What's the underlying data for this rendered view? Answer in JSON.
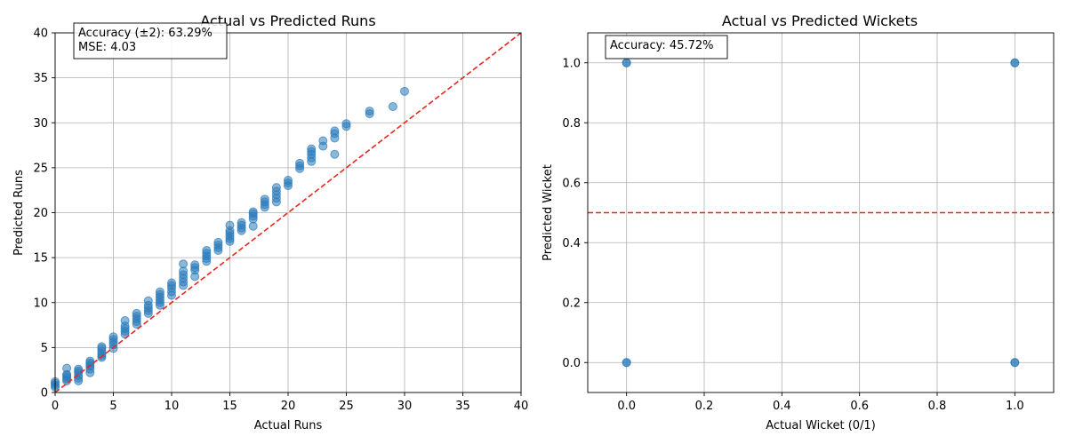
{
  "chart_data": [
    {
      "type": "scatter",
      "title": "Actual vs Predicted Runs",
      "xlabel": "Actual Runs",
      "ylabel": "Predicted Runs",
      "xlim": [
        0,
        40
      ],
      "ylim": [
        0,
        40
      ],
      "xticks": [
        0,
        5,
        10,
        15,
        20,
        25,
        30,
        35,
        40
      ],
      "yticks": [
        0,
        5,
        10,
        15,
        20,
        25,
        30,
        35,
        40
      ],
      "grid": true,
      "reference_line": {
        "points": [
          [
            0,
            0
          ],
          [
            40,
            40
          ]
        ],
        "color": "#e8261d",
        "style": "dashed"
      },
      "annotation": [
        "Accuracy (±2): 63.29%",
        "MSE: 4.03"
      ],
      "point_color": "#2b7bba",
      "series": [
        {
          "points": [
            [
              0,
              0.6
            ],
            [
              0,
              0.8
            ],
            [
              0,
              1.0
            ],
            [
              0,
              1.2
            ],
            [
              1,
              1.3
            ],
            [
              1,
              1.5
            ],
            [
              1,
              1.7
            ],
            [
              1,
              1.9
            ],
            [
              1,
              2.0
            ],
            [
              1,
              2.7
            ],
            [
              2,
              1.3
            ],
            [
              2,
              1.6
            ],
            [
              2,
              1.9
            ],
            [
              2,
              2.2
            ],
            [
              2,
              2.4
            ],
            [
              2,
              2.6
            ],
            [
              3,
              2.2
            ],
            [
              3,
              2.6
            ],
            [
              3,
              2.9
            ],
            [
              3,
              3.1
            ],
            [
              3,
              3.3
            ],
            [
              3,
              3.5
            ],
            [
              4,
              3.9
            ],
            [
              4,
              4.1
            ],
            [
              4,
              4.3
            ],
            [
              4,
              4.6
            ],
            [
              4,
              4.9
            ],
            [
              4,
              5.1
            ],
            [
              5,
              4.9
            ],
            [
              5,
              5.3
            ],
            [
              5,
              5.6
            ],
            [
              5,
              5.9
            ],
            [
              5,
              6.2
            ],
            [
              6,
              6.5
            ],
            [
              6,
              6.8
            ],
            [
              6,
              7.1
            ],
            [
              6,
              7.4
            ],
            [
              6,
              8.0
            ],
            [
              7,
              7.6
            ],
            [
              7,
              7.9
            ],
            [
              7,
              8.2
            ],
            [
              7,
              8.5
            ],
            [
              7,
              8.8
            ],
            [
              8,
              8.8
            ],
            [
              8,
              9.1
            ],
            [
              8,
              9.4
            ],
            [
              8,
              9.7
            ],
            [
              8,
              10.2
            ],
            [
              9,
              9.7
            ],
            [
              9,
              10.0
            ],
            [
              9,
              10.3
            ],
            [
              9,
              10.6
            ],
            [
              9,
              10.9
            ],
            [
              9,
              11.2
            ],
            [
              10,
              10.8
            ],
            [
              10,
              11.2
            ],
            [
              10,
              11.6
            ],
            [
              10,
              11.9
            ],
            [
              10,
              12.2
            ],
            [
              11,
              11.9
            ],
            [
              11,
              12.3
            ],
            [
              11,
              12.7
            ],
            [
              11,
              13.1
            ],
            [
              11,
              13.5
            ],
            [
              11,
              14.3
            ],
            [
              12,
              12.9
            ],
            [
              12,
              13.6
            ],
            [
              12,
              13.9
            ],
            [
              12,
              14.2
            ],
            [
              13,
              14.6
            ],
            [
              13,
              14.9
            ],
            [
              13,
              15.2
            ],
            [
              13,
              15.5
            ],
            [
              13,
              15.8
            ],
            [
              14,
              15.8
            ],
            [
              14,
              16.1
            ],
            [
              14,
              16.4
            ],
            [
              14,
              16.7
            ],
            [
              15,
              16.8
            ],
            [
              15,
              17.1
            ],
            [
              15,
              17.4
            ],
            [
              15,
              17.7
            ],
            [
              15,
              18.0
            ],
            [
              15,
              18.6
            ],
            [
              16,
              18.0
            ],
            [
              16,
              18.3
            ],
            [
              16,
              18.6
            ],
            [
              16,
              18.9
            ],
            [
              17,
              18.5
            ],
            [
              17,
              19.3
            ],
            [
              17,
              19.6
            ],
            [
              17,
              19.9
            ],
            [
              17,
              20.1
            ],
            [
              18,
              20.6
            ],
            [
              18,
              20.9
            ],
            [
              18,
              21.2
            ],
            [
              18,
              21.5
            ],
            [
              19,
              21.2
            ],
            [
              19,
              21.6
            ],
            [
              19,
              22.0
            ],
            [
              19,
              22.4
            ],
            [
              19,
              22.8
            ],
            [
              20,
              23.0
            ],
            [
              20,
              23.3
            ],
            [
              20,
              23.6
            ],
            [
              21,
              24.9
            ],
            [
              21,
              25.2
            ],
            [
              21,
              25.5
            ],
            [
              22,
              25.7
            ],
            [
              22,
              26.1
            ],
            [
              22,
              26.5
            ],
            [
              22,
              26.8
            ],
            [
              22,
              27.1
            ],
            [
              23,
              27.4
            ],
            [
              23,
              28.0
            ],
            [
              24,
              26.5
            ],
            [
              24,
              28.3
            ],
            [
              24,
              28.8
            ],
            [
              24,
              29.1
            ],
            [
              25,
              29.6
            ],
            [
              25,
              29.9
            ],
            [
              27,
              31.0
            ],
            [
              27,
              31.3
            ],
            [
              29,
              31.8
            ],
            [
              30,
              33.5
            ]
          ]
        }
      ]
    },
    {
      "type": "scatter",
      "title": "Actual vs Predicted Wickets",
      "xlabel": "Actual Wicket (0/1)",
      "ylabel": "Predicted Wicket",
      "xlim": [
        -0.1,
        1.1
      ],
      "ylim": [
        -0.1,
        1.1
      ],
      "xticks": [
        0.0,
        0.2,
        0.4,
        0.6,
        0.8,
        1.0
      ],
      "yticks": [
        0.0,
        0.2,
        0.4,
        0.6,
        0.8,
        1.0
      ],
      "grid": true,
      "reference_line": {
        "y": 0.5,
        "color": "#e8261d",
        "style": "dashed"
      },
      "annotation": [
        "Accuracy: 45.72%"
      ],
      "point_color": "#2b7bba",
      "series": [
        {
          "points": [
            [
              0,
              0
            ],
            [
              0,
              0
            ],
            [
              0,
              1
            ],
            [
              0,
              1
            ],
            [
              1,
              0
            ],
            [
              1,
              0
            ],
            [
              1,
              1
            ],
            [
              1,
              1
            ]
          ]
        }
      ]
    }
  ]
}
